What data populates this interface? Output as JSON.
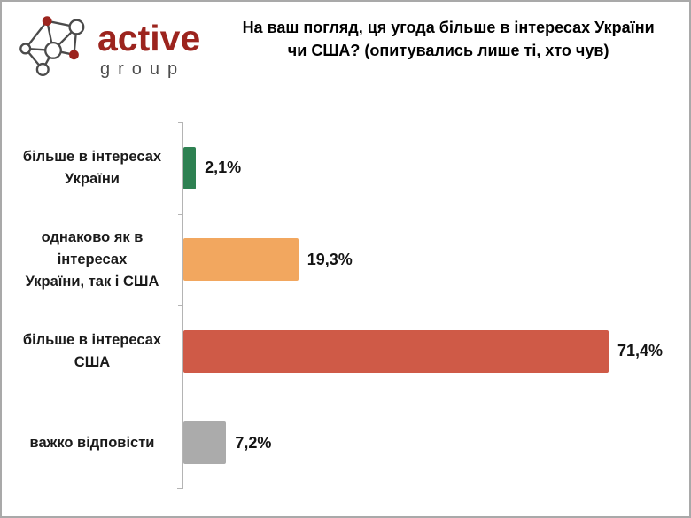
{
  "logo": {
    "brand": "active",
    "subbrand": "group"
  },
  "title": {
    "line1": "На ваш погляд, ця угода більше в інтересах України",
    "line2": "чи США? (опитувались лише ті, хто чув)"
  },
  "chart_data": {
    "type": "bar",
    "orientation": "horizontal",
    "title": "На ваш погляд, ця угода більше в інтересах України чи США? (опитувались лише ті, хто чув)",
    "categories": [
      "більше в інтересах України",
      "однаково як в інтересах України, так і США",
      "більше в інтересах США",
      "важко відповісти"
    ],
    "category_lines": [
      [
        "більше в інтересах",
        "України"
      ],
      [
        "однаково як в інтересах",
        "України, так і США"
      ],
      [
        "більше в інтересах США"
      ],
      [
        "важко відповісти"
      ]
    ],
    "values": [
      2.1,
      19.3,
      71.4,
      7.2
    ],
    "value_labels": [
      "2,1%",
      "19,3%",
      "71,4%",
      "7,2%"
    ],
    "bar_colors": [
      "#2E8152",
      "#F2A75F",
      "#CF5A47",
      "#ABABAB"
    ],
    "xlim": [
      0,
      80
    ],
    "grid": false,
    "legend": false,
    "value_format": "comma-decimal-percent"
  },
  "colors": {
    "brand_red": "#9C241E",
    "brand_gray": "#4D4D4D",
    "axis": "#B4B4B4",
    "page_border": "#A9A9A9",
    "label_text": "#1A1A1A"
  }
}
